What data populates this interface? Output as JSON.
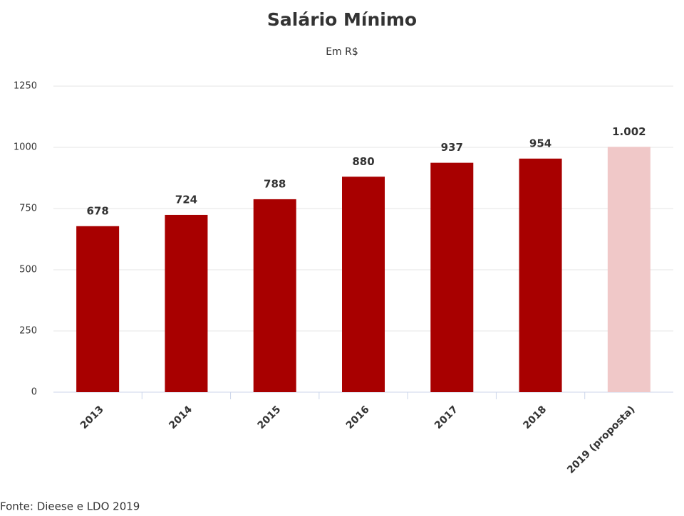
{
  "chart_data": {
    "type": "bar",
    "title": "Salário Mínimo",
    "subtitle": "Em R$",
    "categories": [
      "2013",
      "2014",
      "2015",
      "2016",
      "2017",
      "2018",
      "2019 (proposta)"
    ],
    "values": [
      678,
      724,
      788,
      880,
      937,
      954,
      1002
    ],
    "value_labels": [
      "678",
      "724",
      "788",
      "880",
      "937",
      "954",
      "1.002"
    ],
    "colors": [
      "#a80000",
      "#a80000",
      "#a80000",
      "#a80000",
      "#a80000",
      "#a80000",
      "#f0c8c8"
    ],
    "ylim": [
      0,
      1250
    ],
    "yticks": [
      0,
      250,
      500,
      750,
      1000,
      1250
    ],
    "grid": true,
    "source": "Fonte: Dieese e LDO 2019"
  }
}
